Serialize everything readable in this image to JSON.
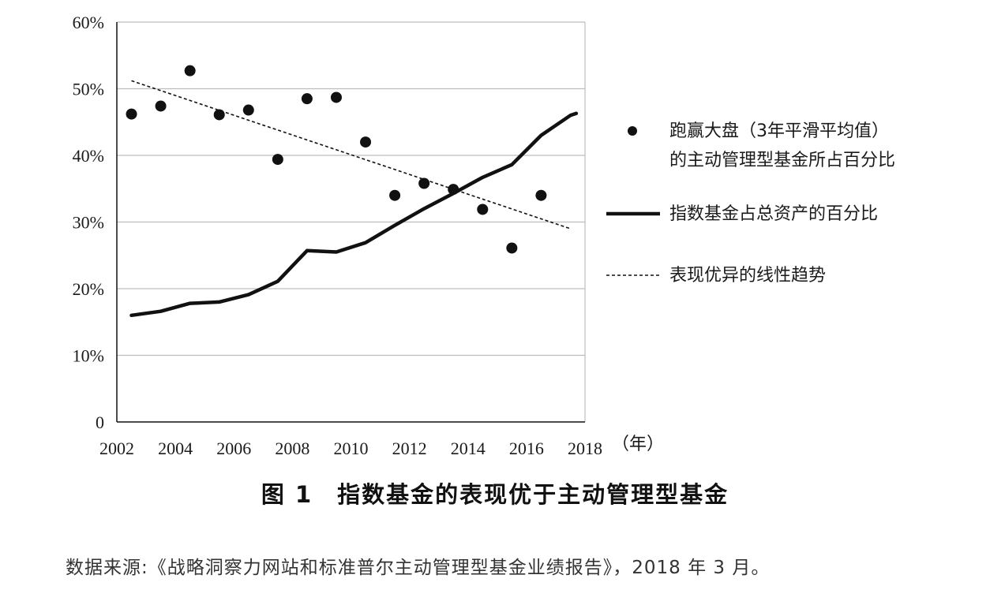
{
  "chart_data": {
    "type": "line",
    "x_unit_label": "（年）",
    "x_ticks": [
      "2002",
      "2004",
      "2006",
      "2008",
      "2010",
      "2012",
      "2014",
      "2016",
      "2018"
    ],
    "y_ticks": [
      "0",
      "10%",
      "20%",
      "30%",
      "40%",
      "50%",
      "60%"
    ],
    "xlim": [
      2002,
      2018
    ],
    "ylim": [
      0,
      60
    ],
    "grid": true,
    "legend_position": "right",
    "series": [
      {
        "name": "跑赢大盘（3年平滑平均值）",
        "name_line2": "的主动管理型基金所占百分比",
        "kind": "scatter",
        "x": [
          2002.5,
          2003.5,
          2004.5,
          2005.5,
          2006.5,
          2007.5,
          2008.5,
          2009.5,
          2010.5,
          2011.5,
          2012.5,
          2013.5,
          2014.5,
          2015.5,
          2016.5
        ],
        "y": [
          46.2,
          47.4,
          52.7,
          46.1,
          46.8,
          39.4,
          48.5,
          48.7,
          42.0,
          34.0,
          35.8,
          34.9,
          31.9,
          26.1,
          34.0
        ]
      },
      {
        "name": "指数基金占总资产的百分比",
        "kind": "line",
        "x": [
          2002.5,
          2003.5,
          2004.5,
          2005.5,
          2006.5,
          2007.5,
          2008.5,
          2009.5,
          2010.5,
          2011.5,
          2012.5,
          2013.5,
          2014.5,
          2015.5,
          2016.5,
          2017.5,
          2017.7
        ],
        "y": [
          16.0,
          16.6,
          17.8,
          18.0,
          19.1,
          21.1,
          25.7,
          25.5,
          26.9,
          29.5,
          32.0,
          34.3,
          36.7,
          38.6,
          43.0,
          46.0,
          46.3
        ]
      },
      {
        "name": "表现优异的线性趋势",
        "kind": "trend",
        "x": [
          2002.5,
          2017.5
        ],
        "y": [
          51.2,
          29.0
        ]
      }
    ]
  },
  "caption": "图 1　指数基金的表现优于主动管理型基金",
  "source": "数据来源:《战略洞察力网站和标准普尔主动管理型基金业绩报告》，2018 年 3 月。"
}
